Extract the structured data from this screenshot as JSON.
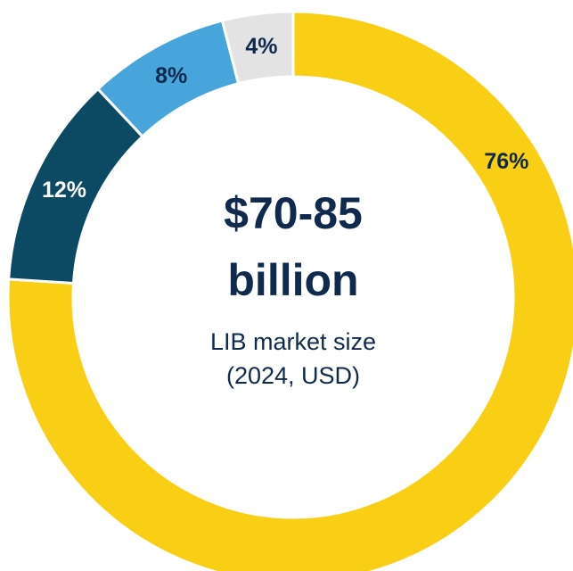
{
  "chart_data": {
    "type": "pie",
    "donut": true,
    "slices": [
      {
        "label": "76%",
        "value": 76,
        "color": "#f8cf14",
        "label_color": "#0f2a4d"
      },
      {
        "label": "12%",
        "value": 12,
        "color": "#0b4a62",
        "label_color": "#ffffff"
      },
      {
        "label": "8%",
        "value": 8,
        "color": "#47a5dc",
        "label_color": "#0f2a4d"
      },
      {
        "label": "4%",
        "value": 4,
        "color": "#e3e3e3",
        "label_color": "#0f2a4d"
      }
    ],
    "center_text": {
      "line1": "$70-85",
      "line2": "billion",
      "line3": "LIB market size",
      "line4": "(2024, USD)"
    }
  }
}
